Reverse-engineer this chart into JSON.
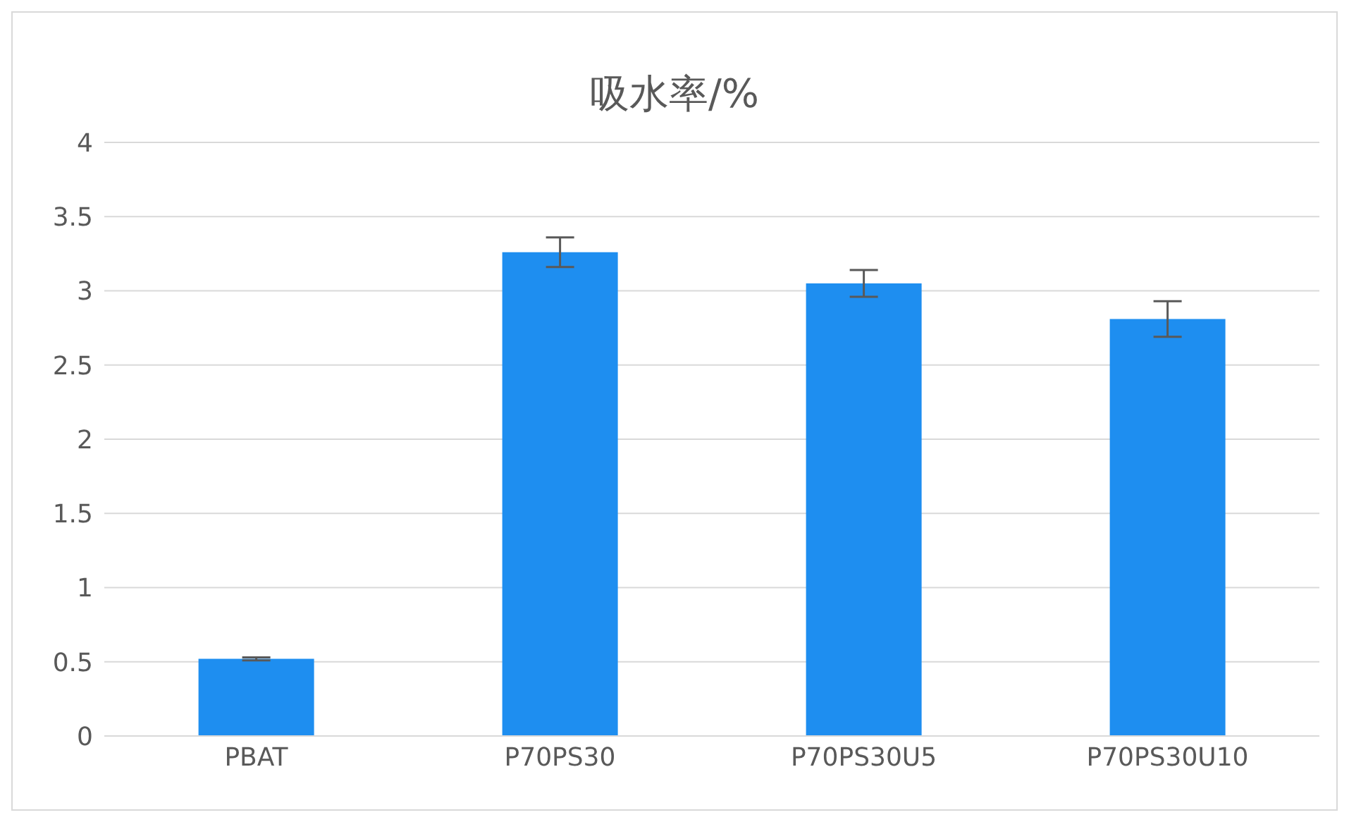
{
  "chart_data": {
    "type": "bar",
    "title": "吸水率/%",
    "categories": [
      "PBAT",
      "P70PS30",
      "P70PS30U5",
      "P70PS30U10"
    ],
    "values": [
      0.52,
      3.26,
      3.05,
      2.81
    ],
    "errors": [
      0.01,
      0.1,
      0.09,
      0.12
    ],
    "color": "#1e8ef0",
    "ylim": [
      0,
      4
    ],
    "yticks": [
      0,
      0.5,
      1,
      1.5,
      2,
      2.5,
      3,
      3.5,
      4
    ],
    "grid": "y",
    "legend": false
  }
}
